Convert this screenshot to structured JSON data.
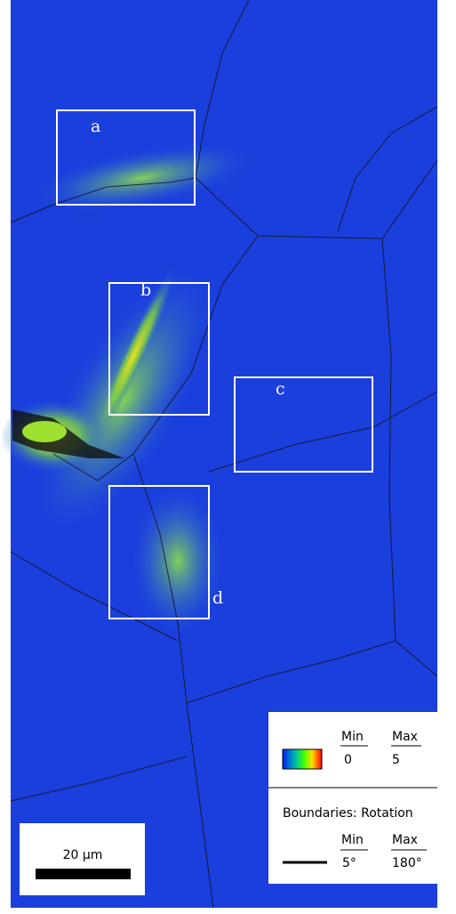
{
  "regions": {
    "labels": [
      "a",
      "b",
      "c",
      "d"
    ]
  },
  "legend": {
    "kam": {
      "min_label": "Min",
      "max_label": "Max",
      "min": "0",
      "max": "5"
    },
    "boundaries": {
      "title": "Boundaries: Rotation",
      "min_label": "Min",
      "max_label": "Max",
      "min": "5°",
      "max": "180°"
    }
  },
  "scale_bar": {
    "label": "20 μm"
  }
}
